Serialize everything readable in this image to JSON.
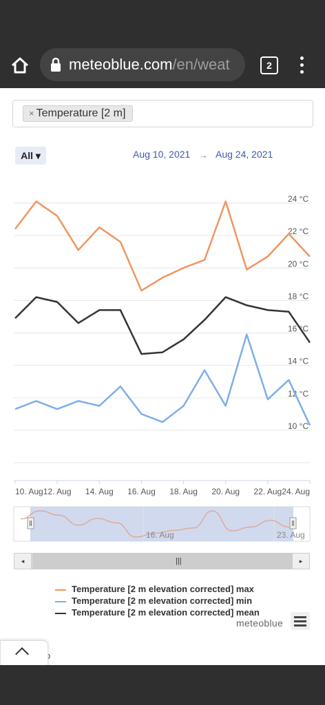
{
  "browser": {
    "url_host": "meteoblue.com",
    "url_path": "/en/weat",
    "tab_count": "2"
  },
  "filter": {
    "chip_remove": "×",
    "chip_label": "Temperature [2 m]"
  },
  "controls": {
    "range_button": "All ▾",
    "date_from": "Aug 10, 2021",
    "arrow": "→",
    "date_to": "Aug 24, 2021"
  },
  "chart_data": {
    "type": "line",
    "x": [
      "10. Aug",
      "11. Aug",
      "12. Aug",
      "13. Aug",
      "14. Aug",
      "15. Aug",
      "16. Aug",
      "17. Aug",
      "18. Aug",
      "19. Aug",
      "20. Aug",
      "21. Aug",
      "22. Aug",
      "23. Aug",
      "24. Aug"
    ],
    "x_tick_labels": [
      "10. Aug",
      "12. Aug",
      "14. Aug",
      "16. Aug",
      "18. Aug",
      "20. Aug",
      "22. Aug",
      "24. Aug"
    ],
    "y_tick_labels": [
      "10 °C",
      "12 °C",
      "14 °C",
      "16 °C",
      "18 °C",
      "20 °C",
      "22 °C",
      "24 °C"
    ],
    "ylim": [
      10,
      25
    ],
    "series": [
      {
        "name": "Temperature [2 m elevation corrected] max",
        "color": "#f0955e",
        "values": [
          23.0,
          24.7,
          23.8,
          21.7,
          23.1,
          22.2,
          19.2,
          20.0,
          20.6,
          21.1,
          24.7,
          20.5,
          21.3,
          22.7,
          21.3
        ]
      },
      {
        "name": "Temperature [2 m elevation corrected] min",
        "color": "#7caee8",
        "values": [
          11.9,
          12.4,
          11.9,
          12.4,
          12.1,
          13.3,
          11.6,
          11.1,
          12.1,
          14.3,
          12.1,
          16.5,
          12.5,
          13.7,
          10.9
        ]
      },
      {
        "name": "Temperature [2 m elevation corrected] mean",
        "color": "#333333",
        "values": [
          17.5,
          18.8,
          18.5,
          17.2,
          18.0,
          18.0,
          15.3,
          15.4,
          16.2,
          17.4,
          18.8,
          18.3,
          18.0,
          17.9,
          16.0
        ]
      }
    ],
    "grid": true,
    "legend_placement": "bottom"
  },
  "navigator": {
    "labels": [
      "16. Aug",
      "23. Aug"
    ]
  },
  "scrollbar": {
    "left": "◂",
    "right": "▸",
    "grip": "|||"
  },
  "footer": {
    "brand": "meteoblue",
    "fragment": "o"
  }
}
